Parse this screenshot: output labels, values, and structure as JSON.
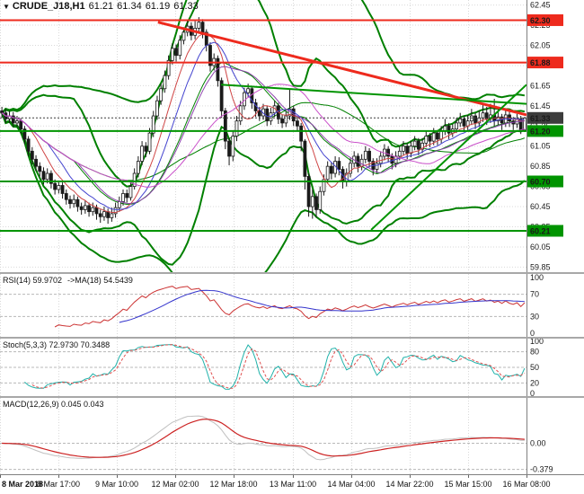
{
  "window": {
    "symbol": "CRUDE_J18,H1",
    "open": "61.21",
    "high": "61.34",
    "low": "61.19",
    "close": "61.33"
  },
  "colors": {
    "background": "#ffffff",
    "grid": "#d9d9d9",
    "candle": "#1a1a1a",
    "axis_text": "#1a1a1a",
    "resistance": "#ee2a1d",
    "support": "#009400",
    "band": "#008000",
    "bid_label": "#3c3c3c",
    "separator": "#a8a8a8"
  },
  "chart_data": {
    "type": "candlestick",
    "timeframe": "H1",
    "price_range": [
      59.8,
      62.5
    ],
    "y_ticks": [
      62.45,
      62.25,
      62.05,
      61.85,
      61.65,
      61.45,
      61.25,
      61.05,
      60.85,
      60.65,
      60.45,
      60.25,
      60.05,
      59.85
    ],
    "x_labels": [
      "8 Mar 2018",
      "8 Mar 17:00",
      "9 Mar 10:00",
      "12 Mar 02:00",
      "12 Mar 18:00",
      "13 Mar 11:00",
      "14 Mar 04:00",
      "14 Mar 22:00",
      "15 Mar 15:00",
      "16 Mar 08:00"
    ],
    "price_lines": [
      {
        "price": 62.3,
        "label": "62.30",
        "color": "#ee2a1d",
        "width": 2
      },
      {
        "price": 61.88,
        "label": "61.88",
        "color": "#ee2a1d",
        "width": 2
      },
      {
        "price": 61.33,
        "label": "61.33",
        "color": "#3c3c3c",
        "width": 1,
        "dash": true
      },
      {
        "price": 61.2,
        "label": "61.20",
        "color": "#009400",
        "width": 2
      },
      {
        "price": 60.7,
        "label": "60.70",
        "color": "#009400",
        "width": 2
      },
      {
        "price": 60.21,
        "label": "60.21",
        "color": "#009400",
        "width": 2
      }
    ],
    "trendlines": [
      {
        "x1": 0.3,
        "p1": 62.28,
        "x2": 1.0,
        "p2": 61.36,
        "color": "#ee2a1d",
        "width": 3
      },
      {
        "x1": 0.705,
        "p1": 60.22,
        "x2": 1.0,
        "p2": 61.66,
        "color": "#009400",
        "width": 2
      },
      {
        "x1": 0.42,
        "p1": 61.66,
        "x2": 1.0,
        "p2": 61.47,
        "color": "#009400",
        "width": 2
      }
    ],
    "overlays": {
      "bollinger": [
        {
          "period": 20,
          "dev": 2.0,
          "color": "#008000",
          "width": 2
        },
        {
          "period": 48,
          "dev": 2.4,
          "color": "#008000",
          "width": 2
        }
      ],
      "moving_averages": [
        {
          "period": 8,
          "color": "#cf4444",
          "width": 1
        },
        {
          "period": 13,
          "color": "#4444cf",
          "width": 1
        },
        {
          "period": 21,
          "color": "#8e44ad",
          "width": 1
        },
        {
          "period": 34,
          "color": "#c94fc9",
          "width": 1
        }
      ]
    },
    "indicators": {
      "rsi": {
        "label": "RSI(14) 59.9702",
        "ma_label": "->MA(18) 54.5439",
        "period": 14,
        "ma_period": 18,
        "range": [
          0,
          100
        ],
        "ticks": [
          100,
          70,
          30,
          0
        ],
        "levels": [
          70,
          30
        ],
        "color": "#cc3333",
        "ma_color": "#3333cc"
      },
      "stoch": {
        "label": "Stoch(5,3,3) 72.9730 70.3488",
        "k_period": 5,
        "slowing": 3,
        "d_period": 3,
        "range": [
          0,
          100
        ],
        "ticks": [
          100,
          80,
          50,
          20,
          0
        ],
        "levels": [
          80,
          50,
          20
        ],
        "k_color": "#20b2aa",
        "d_color": "#e05050"
      },
      "macd": {
        "label": "MACD(12,26,9) 0.045 0.043",
        "fast": 12,
        "slow": 26,
        "signal": 9,
        "range": [
          -0.45,
          0.66
        ],
        "ticks": [
          {
            "v": 0,
            "label": "0.00"
          },
          {
            "v": -0.379,
            "label": "-0.379"
          }
        ],
        "color": "#c0c0c0",
        "signal_color": "#cc2222"
      }
    },
    "candles": [
      [
        61.4,
        61.44,
        61.33,
        61.38
      ],
      [
        61.38,
        61.42,
        61.28,
        61.32
      ],
      [
        61.32,
        61.4,
        61.28,
        61.35
      ],
      [
        61.35,
        61.39,
        61.24,
        61.28
      ],
      [
        61.28,
        61.35,
        61.24,
        61.3
      ],
      [
        61.3,
        61.33,
        61.17,
        61.22
      ],
      [
        61.22,
        61.25,
        61.07,
        61.12
      ],
      [
        61.12,
        61.15,
        60.95,
        61.0
      ],
      [
        61.0,
        61.04,
        60.87,
        60.92
      ],
      [
        60.92,
        60.96,
        60.8,
        60.85
      ],
      [
        60.85,
        60.89,
        60.75,
        60.8
      ],
      [
        60.8,
        60.84,
        60.67,
        60.72
      ],
      [
        60.72,
        60.83,
        60.68,
        60.78
      ],
      [
        60.78,
        60.81,
        60.63,
        60.68
      ],
      [
        60.68,
        60.72,
        60.57,
        60.62
      ],
      [
        60.62,
        60.71,
        60.58,
        60.66
      ],
      [
        60.66,
        60.69,
        60.53,
        60.58
      ],
      [
        60.58,
        60.62,
        60.47,
        60.52
      ],
      [
        60.52,
        60.56,
        60.43,
        60.48
      ],
      [
        60.48,
        60.57,
        60.44,
        60.52
      ],
      [
        60.52,
        60.55,
        60.4,
        60.45
      ],
      [
        60.45,
        60.49,
        60.37,
        60.42
      ],
      [
        60.42,
        60.51,
        60.38,
        60.46
      ],
      [
        60.46,
        60.49,
        60.35,
        60.4
      ],
      [
        60.4,
        60.49,
        60.36,
        60.44
      ],
      [
        60.44,
        60.47,
        60.32,
        60.38
      ],
      [
        60.38,
        60.42,
        60.29,
        60.35
      ],
      [
        60.35,
        60.45,
        60.31,
        60.4
      ],
      [
        60.4,
        60.43,
        60.28,
        60.34
      ],
      [
        60.34,
        60.44,
        60.3,
        60.38
      ],
      [
        60.38,
        60.49,
        60.34,
        60.44
      ],
      [
        60.44,
        60.55,
        60.4,
        60.5
      ],
      [
        60.5,
        60.62,
        60.46,
        60.58
      ],
      [
        60.58,
        60.62,
        60.49,
        60.54
      ],
      [
        60.54,
        60.7,
        60.51,
        60.65
      ],
      [
        60.65,
        60.83,
        60.62,
        60.78
      ],
      [
        60.78,
        60.95,
        60.74,
        60.9
      ],
      [
        60.9,
        61.1,
        60.86,
        61.05
      ],
      [
        61.05,
        61.09,
        60.94,
        61.0
      ],
      [
        61.0,
        61.23,
        60.97,
        61.18
      ],
      [
        61.18,
        61.4,
        61.14,
        61.35
      ],
      [
        61.35,
        61.55,
        61.31,
        61.5
      ],
      [
        61.5,
        61.67,
        61.46,
        61.62
      ],
      [
        61.62,
        61.8,
        61.58,
        61.75
      ],
      [
        61.75,
        61.95,
        61.71,
        61.9
      ],
      [
        61.9,
        62.07,
        61.86,
        62.02
      ],
      [
        62.02,
        62.06,
        61.89,
        61.95
      ],
      [
        61.95,
        62.15,
        61.91,
        62.1
      ],
      [
        62.1,
        62.23,
        62.06,
        62.18
      ],
      [
        62.18,
        62.3,
        62.14,
        62.24
      ],
      [
        62.24,
        62.28,
        62.1,
        62.15
      ],
      [
        62.15,
        62.29,
        62.11,
        62.22
      ],
      [
        62.22,
        62.33,
        62.17,
        62.28
      ],
      [
        62.28,
        62.31,
        62.12,
        62.18
      ],
      [
        62.18,
        62.21,
        61.99,
        62.05
      ],
      [
        62.05,
        62.08,
        61.79,
        61.85
      ],
      [
        61.85,
        61.97,
        61.8,
        61.92
      ],
      [
        61.92,
        61.95,
        61.64,
        61.7
      ],
      [
        61.7,
        61.73,
        61.33,
        61.4
      ],
      [
        61.4,
        61.43,
        61.02,
        61.1
      ],
      [
        61.1,
        61.13,
        60.86,
        60.95
      ],
      [
        60.95,
        61.2,
        60.9,
        61.15
      ],
      [
        61.15,
        61.35,
        61.1,
        61.3
      ],
      [
        61.3,
        61.5,
        61.26,
        61.45
      ],
      [
        61.45,
        61.63,
        61.41,
        61.58
      ],
      [
        61.58,
        61.67,
        61.53,
        61.62
      ],
      [
        61.62,
        61.65,
        61.42,
        61.48
      ],
      [
        61.48,
        61.52,
        61.34,
        61.4
      ],
      [
        61.4,
        61.44,
        61.3,
        61.35
      ],
      [
        61.35,
        61.47,
        61.31,
        61.42
      ],
      [
        61.42,
        61.45,
        61.25,
        61.3
      ],
      [
        61.3,
        61.43,
        61.26,
        61.38
      ],
      [
        61.38,
        61.5,
        61.34,
        61.45
      ],
      [
        61.45,
        61.48,
        61.27,
        61.32
      ],
      [
        61.32,
        61.36,
        61.23,
        61.28
      ],
      [
        61.28,
        61.4,
        61.24,
        61.35
      ],
      [
        61.35,
        61.62,
        61.31,
        61.42
      ],
      [
        61.42,
        61.45,
        61.25,
        61.3
      ],
      [
        61.3,
        61.34,
        61.2,
        61.25
      ],
      [
        61.25,
        61.28,
        61.0,
        61.1
      ],
      [
        61.1,
        61.12,
        60.62,
        60.75
      ],
      [
        60.75,
        60.78,
        60.35,
        60.45
      ],
      [
        60.45,
        60.62,
        60.33,
        60.55
      ],
      [
        60.55,
        60.58,
        60.34,
        60.42
      ],
      [
        60.42,
        60.65,
        60.38,
        60.6
      ],
      [
        60.6,
        60.77,
        60.56,
        60.72
      ],
      [
        60.72,
        60.9,
        60.68,
        60.85
      ],
      [
        60.85,
        60.89,
        60.72,
        60.78
      ],
      [
        60.78,
        60.95,
        60.74,
        60.9
      ],
      [
        60.9,
        60.94,
        60.76,
        60.82
      ],
      [
        60.82,
        60.85,
        60.63,
        60.7
      ],
      [
        60.7,
        60.83,
        60.65,
        60.78
      ],
      [
        60.78,
        60.93,
        60.74,
        60.88
      ],
      [
        60.88,
        61.0,
        60.84,
        60.95
      ],
      [
        60.95,
        60.98,
        60.79,
        60.85
      ],
      [
        60.85,
        60.97,
        60.81,
        60.92
      ],
      [
        60.92,
        61.05,
        60.88,
        61.0
      ],
      [
        61.0,
        61.03,
        60.84,
        60.9
      ],
      [
        60.9,
        60.93,
        60.76,
        60.82
      ],
      [
        60.82,
        60.93,
        60.78,
        60.88
      ],
      [
        60.88,
        61.0,
        60.84,
        60.95
      ],
      [
        60.95,
        61.07,
        60.91,
        61.02
      ],
      [
        61.02,
        61.05,
        60.89,
        60.95
      ],
      [
        60.95,
        60.98,
        60.82,
        60.88
      ],
      [
        60.88,
        61.0,
        60.84,
        60.95
      ],
      [
        60.95,
        61.05,
        60.91,
        61.0
      ],
      [
        61.0,
        61.1,
        60.96,
        61.05
      ],
      [
        61.05,
        61.08,
        60.92,
        60.98
      ],
      [
        60.98,
        61.1,
        60.94,
        61.05
      ],
      [
        61.05,
        61.15,
        61.01,
        61.1
      ],
      [
        61.1,
        61.13,
        60.96,
        61.02
      ],
      [
        61.02,
        61.13,
        60.98,
        61.08
      ],
      [
        61.08,
        61.2,
        61.04,
        61.15
      ],
      [
        61.15,
        61.18,
        61.04,
        61.1
      ],
      [
        61.1,
        61.23,
        61.06,
        61.18
      ],
      [
        61.18,
        61.21,
        61.06,
        61.12
      ],
      [
        61.12,
        61.25,
        61.08,
        61.2
      ],
      [
        61.2,
        61.32,
        61.16,
        61.25
      ],
      [
        61.25,
        61.28,
        61.12,
        61.18
      ],
      [
        61.18,
        61.27,
        61.14,
        61.22
      ],
      [
        61.22,
        61.33,
        61.18,
        61.28
      ],
      [
        61.28,
        61.38,
        61.24,
        61.32
      ],
      [
        61.32,
        61.35,
        61.19,
        61.25
      ],
      [
        61.25,
        61.36,
        61.21,
        61.3
      ],
      [
        61.3,
        61.42,
        61.26,
        61.35
      ],
      [
        61.35,
        61.38,
        61.22,
        61.28
      ],
      [
        61.28,
        61.4,
        61.24,
        61.33
      ],
      [
        61.33,
        61.48,
        61.29,
        61.38
      ],
      [
        61.38,
        61.44,
        61.26,
        61.32
      ],
      [
        61.32,
        61.47,
        61.28,
        61.36
      ],
      [
        61.36,
        61.52,
        61.25,
        61.3
      ],
      [
        61.3,
        61.44,
        61.26,
        61.34
      ],
      [
        61.34,
        61.37,
        61.21,
        61.28
      ],
      [
        61.28,
        61.41,
        61.24,
        61.36
      ],
      [
        61.36,
        61.39,
        61.24,
        61.3
      ],
      [
        61.3,
        61.34,
        61.21,
        61.27
      ],
      [
        61.27,
        61.37,
        61.23,
        61.32
      ],
      [
        61.32,
        61.35,
        61.17,
        61.21
      ],
      [
        61.21,
        61.34,
        61.19,
        61.33
      ]
    ]
  }
}
